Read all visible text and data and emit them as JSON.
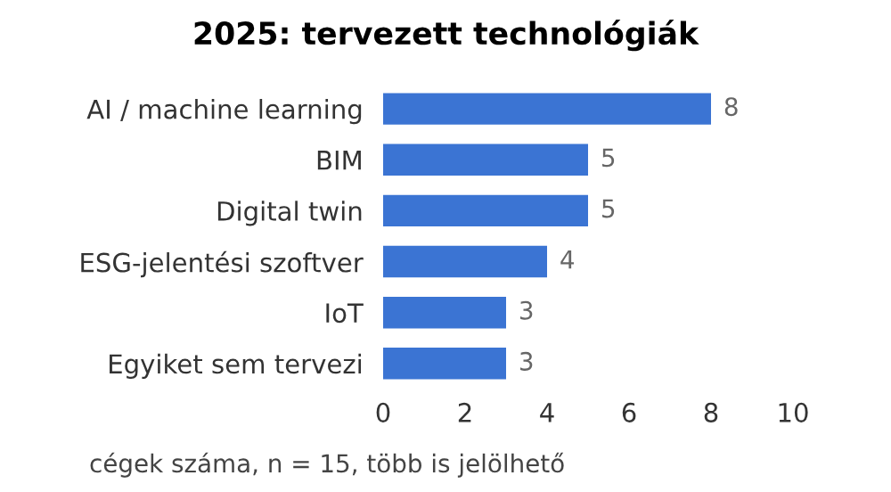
{
  "chart_data": {
    "type": "bar",
    "orientation": "horizontal",
    "title": "2025: tervezett technológiák",
    "categories": [
      "AI / machine learning",
      "BIM",
      "Digital twin",
      "ESG-jelentési szoftver",
      "IoT",
      "Egyiket sem tervezi"
    ],
    "values": [
      8,
      5,
      5,
      4,
      3,
      3
    ],
    "color": "#3b74d3",
    "xlim": [
      0,
      10
    ],
    "xticks": [
      0,
      2,
      4,
      6,
      8,
      10
    ],
    "grid": false,
    "data_labels": true,
    "xlabel": "cégek száma, n = 15, több is jelölhető"
  }
}
